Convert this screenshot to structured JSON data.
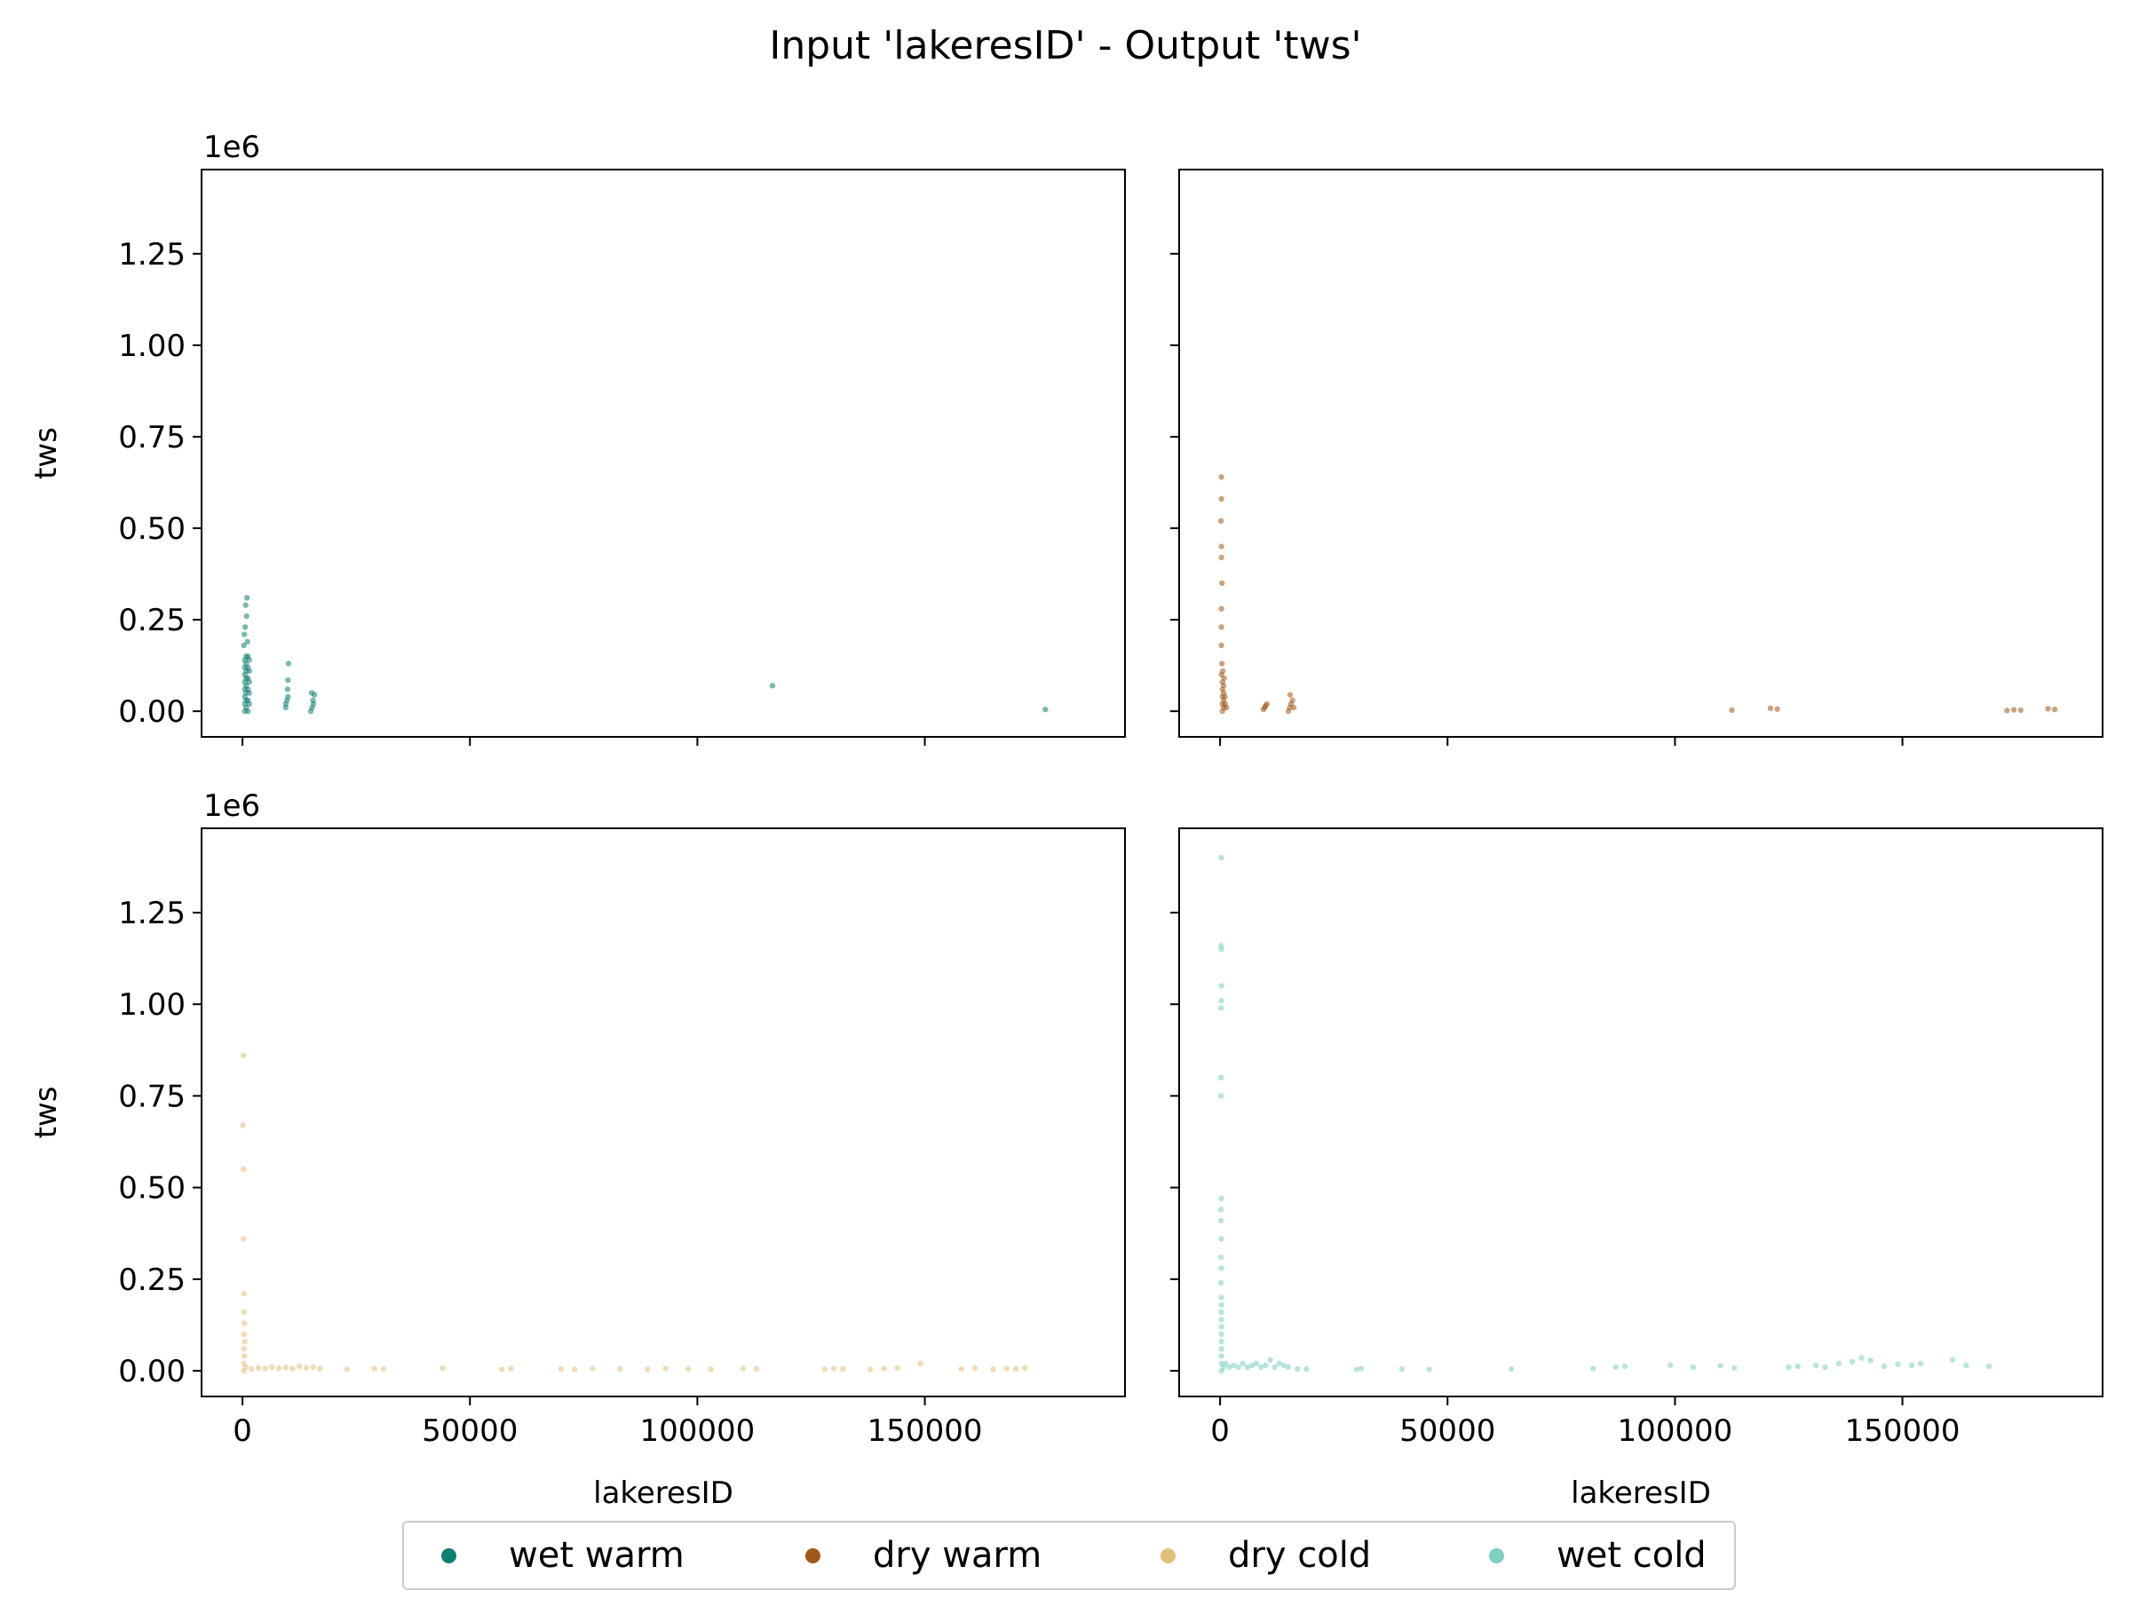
{
  "figure": {
    "title": "Input 'lakeresID' - Output 'tws'"
  },
  "colors": {
    "wet_warm": "#0f7f6f",
    "dry_warm": "#a0581a",
    "dry_cold": "#e0bf7e",
    "wet_cold": "#80cdc1"
  },
  "chart_data": {
    "type": "scatter",
    "title": "Input 'lakeresID' - Output 'tws'",
    "xlabel": "lakeresID",
    "ylabel": "tws",
    "y_scale_label": "1e6",
    "xlim": [
      -9000,
      194000
    ],
    "ylim": [
      -0.07,
      1.48
    ],
    "y_unit_multiplier": 1000000,
    "x_ticks": [
      0,
      50000,
      100000,
      150000
    ],
    "x_tick_labels": [
      "0",
      "50000",
      "100000",
      "150000"
    ],
    "y_ticks": [
      0.0,
      0.25,
      0.5,
      0.75,
      1.0,
      1.25
    ],
    "y_tick_labels": [
      "0.00",
      "0.25",
      "0.50",
      "0.75",
      "1.00",
      "1.25"
    ],
    "grid": false,
    "legend_position": "bottom-center",
    "layout": "2x2 shared axes",
    "legend": [
      {
        "label": "wet warm",
        "color": "#0f7f6f"
      },
      {
        "label": "dry warm",
        "color": "#a0581a"
      },
      {
        "label": "dry cold",
        "color": "#e0bf7e"
      },
      {
        "label": "wet cold",
        "color": "#80cdc1"
      }
    ],
    "panels": [
      {
        "series": "wet warm",
        "color": "#0f7f6f",
        "show_ylabel": true,
        "show_xlabel": false,
        "points": [
          [
            500,
            0.0
          ],
          [
            500,
            0.02
          ],
          [
            500,
            0.04
          ],
          [
            500,
            0.06
          ],
          [
            500,
            0.08
          ],
          [
            500,
            0.1
          ],
          [
            500,
            0.12
          ],
          [
            500,
            0.14
          ],
          [
            800,
            0.01
          ],
          [
            800,
            0.03
          ],
          [
            800,
            0.05
          ],
          [
            800,
            0.07
          ],
          [
            800,
            0.09
          ],
          [
            800,
            0.11
          ],
          [
            800,
            0.13
          ],
          [
            800,
            0.15
          ],
          [
            1200,
            0.0
          ],
          [
            1200,
            0.03
          ],
          [
            1200,
            0.06
          ],
          [
            1200,
            0.09
          ],
          [
            1200,
            0.12
          ],
          [
            1200,
            0.15
          ],
          [
            1500,
            0.02
          ],
          [
            1500,
            0.05
          ],
          [
            1500,
            0.08
          ],
          [
            1500,
            0.11
          ],
          [
            1500,
            0.14
          ],
          [
            300,
            0.18
          ],
          [
            400,
            0.21
          ],
          [
            600,
            0.23
          ],
          [
            900,
            0.26
          ],
          [
            700,
            0.29
          ],
          [
            1000,
            0.31
          ],
          [
            1100,
            0.19
          ],
          [
            9500,
            0.01
          ],
          [
            9500,
            0.02
          ],
          [
            9800,
            0.03
          ],
          [
            10000,
            0.04
          ],
          [
            9900,
            0.06
          ],
          [
            10000,
            0.085
          ],
          [
            10100,
            0.13
          ],
          [
            15000,
            0.0
          ],
          [
            15300,
            0.01
          ],
          [
            15600,
            0.02
          ],
          [
            15500,
            0.03
          ],
          [
            15800,
            0.045
          ],
          [
            15200,
            0.05
          ],
          [
            116500,
            0.07
          ],
          [
            176500,
            0.005
          ]
        ]
      },
      {
        "series": "dry warm",
        "color": "#a0581a",
        "show_ylabel": false,
        "show_xlabel": false,
        "points": [
          [
            500,
            0.0
          ],
          [
            500,
            0.02
          ],
          [
            500,
            0.04
          ],
          [
            500,
            0.06
          ],
          [
            500,
            0.08
          ],
          [
            800,
            0.01
          ],
          [
            800,
            0.03
          ],
          [
            800,
            0.05
          ],
          [
            800,
            0.07
          ],
          [
            1100,
            0.02
          ],
          [
            1100,
            0.04
          ],
          [
            1400,
            0.01
          ],
          [
            300,
            0.1
          ],
          [
            400,
            0.13
          ],
          [
            300,
            0.18
          ],
          [
            300,
            0.23
          ],
          [
            300,
            0.28
          ],
          [
            400,
            0.35
          ],
          [
            300,
            0.42
          ],
          [
            300,
            0.45
          ],
          [
            200,
            0.52
          ],
          [
            300,
            0.58
          ],
          [
            300,
            0.64
          ],
          [
            600,
            0.11
          ],
          [
            900,
            0.09
          ],
          [
            9500,
            0.005
          ],
          [
            9800,
            0.01
          ],
          [
            10000,
            0.015
          ],
          [
            10300,
            0.02
          ],
          [
            15000,
            0.0
          ],
          [
            15300,
            0.01
          ],
          [
            15600,
            0.02
          ],
          [
            15900,
            0.03
          ],
          [
            16200,
            0.01
          ],
          [
            15400,
            0.045
          ],
          [
            112500,
            0.003
          ],
          [
            121000,
            0.008
          ],
          [
            122500,
            0.006
          ],
          [
            173000,
            0.002
          ],
          [
            174500,
            0.004
          ],
          [
            176000,
            0.003
          ],
          [
            182000,
            0.007
          ],
          [
            183500,
            0.005
          ]
        ]
      },
      {
        "series": "dry cold",
        "color": "#e0bf7e",
        "show_ylabel": true,
        "show_xlabel": true,
        "points": [
          [
            300,
            0.0
          ],
          [
            300,
            0.02
          ],
          [
            400,
            0.04
          ],
          [
            300,
            0.06
          ],
          [
            500,
            0.08
          ],
          [
            300,
            0.1
          ],
          [
            400,
            0.13
          ],
          [
            300,
            0.16
          ],
          [
            300,
            0.21
          ],
          [
            200,
            0.36
          ],
          [
            200,
            0.55
          ],
          [
            100,
            0.67
          ],
          [
            200,
            0.86
          ],
          [
            800,
            0.01
          ],
          [
            2000,
            0.005
          ],
          [
            3500,
            0.008
          ],
          [
            5000,
            0.006
          ],
          [
            6500,
            0.01
          ],
          [
            8000,
            0.007
          ],
          [
            9500,
            0.009
          ],
          [
            11000,
            0.006
          ],
          [
            12500,
            0.012
          ],
          [
            14000,
            0.008
          ],
          [
            15500,
            0.01
          ],
          [
            17000,
            0.006
          ],
          [
            23000,
            0.004
          ],
          [
            29000,
            0.006
          ],
          [
            31000,
            0.005
          ],
          [
            44000,
            0.007
          ],
          [
            57000,
            0.004
          ],
          [
            59000,
            0.006
          ],
          [
            70000,
            0.005
          ],
          [
            73000,
            0.004
          ],
          [
            77000,
            0.006
          ],
          [
            83000,
            0.005
          ],
          [
            89000,
            0.004
          ],
          [
            93000,
            0.006
          ],
          [
            98000,
            0.005
          ],
          [
            103000,
            0.004
          ],
          [
            110000,
            0.006
          ],
          [
            113000,
            0.005
          ],
          [
            128000,
            0.004
          ],
          [
            130000,
            0.006
          ],
          [
            132000,
            0.005
          ],
          [
            138000,
            0.004
          ],
          [
            141000,
            0.006
          ],
          [
            144000,
            0.008
          ],
          [
            149000,
            0.02
          ],
          [
            158000,
            0.005
          ],
          [
            161000,
            0.007
          ],
          [
            165000,
            0.004
          ],
          [
            168000,
            0.006
          ],
          [
            170000,
            0.005
          ],
          [
            172000,
            0.008
          ]
        ]
      },
      {
        "series": "wet cold",
        "color": "#80cdc1",
        "show_ylabel": false,
        "show_xlabel": true,
        "points": [
          [
            300,
            0.0
          ],
          [
            300,
            0.02
          ],
          [
            300,
            0.04
          ],
          [
            300,
            0.06
          ],
          [
            300,
            0.08
          ],
          [
            300,
            0.1
          ],
          [
            300,
            0.12
          ],
          [
            300,
            0.14
          ],
          [
            300,
            0.16
          ],
          [
            300,
            0.18
          ],
          [
            300,
            0.2
          ],
          [
            200,
            0.24
          ],
          [
            300,
            0.28
          ],
          [
            200,
            0.31
          ],
          [
            300,
            0.36
          ],
          [
            200,
            0.41
          ],
          [
            200,
            0.44
          ],
          [
            300,
            0.47
          ],
          [
            200,
            0.75
          ],
          [
            200,
            0.8
          ],
          [
            200,
            0.99
          ],
          [
            300,
            1.01
          ],
          [
            300,
            1.05
          ],
          [
            300,
            1.15
          ],
          [
            200,
            1.16
          ],
          [
            300,
            1.4
          ],
          [
            700,
            0.01
          ],
          [
            1200,
            0.02
          ],
          [
            2000,
            0.01
          ],
          [
            3000,
            0.015
          ],
          [
            4000,
            0.01
          ],
          [
            5000,
            0.02
          ],
          [
            6000,
            0.01
          ],
          [
            7000,
            0.015
          ],
          [
            8000,
            0.02
          ],
          [
            9000,
            0.01
          ],
          [
            10000,
            0.015
          ],
          [
            11000,
            0.03
          ],
          [
            12000,
            0.01
          ],
          [
            13000,
            0.02
          ],
          [
            14000,
            0.015
          ],
          [
            15000,
            0.01
          ],
          [
            17000,
            0.005
          ],
          [
            19000,
            0.005
          ],
          [
            30000,
            0.004
          ],
          [
            31000,
            0.006
          ],
          [
            40000,
            0.005
          ],
          [
            46000,
            0.004
          ],
          [
            64000,
            0.005
          ],
          [
            82000,
            0.006
          ],
          [
            87000,
            0.01
          ],
          [
            89000,
            0.012
          ],
          [
            99000,
            0.015
          ],
          [
            104000,
            0.01
          ],
          [
            110000,
            0.014
          ],
          [
            113000,
            0.008
          ],
          [
            125000,
            0.01
          ],
          [
            127000,
            0.012
          ],
          [
            131000,
            0.015
          ],
          [
            133000,
            0.01
          ],
          [
            136000,
            0.02
          ],
          [
            139000,
            0.025
          ],
          [
            141000,
            0.035
          ],
          [
            143000,
            0.028
          ],
          [
            146000,
            0.012
          ],
          [
            149000,
            0.018
          ],
          [
            152000,
            0.015
          ],
          [
            154000,
            0.02
          ],
          [
            161000,
            0.03
          ],
          [
            164000,
            0.015
          ],
          [
            169000,
            0.012
          ]
        ]
      }
    ]
  }
}
